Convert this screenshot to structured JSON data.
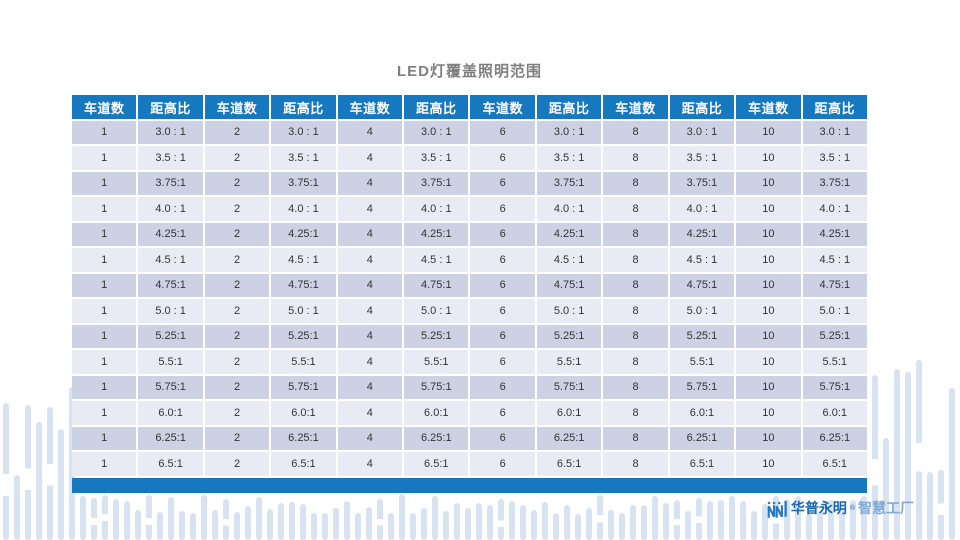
{
  "title": "LED灯覆盖照明范围",
  "table": {
    "column_pair_labels": {
      "lanes": "车道数",
      "ratio": "距高比"
    },
    "pairs": 6,
    "lanes": [
      1,
      2,
      4,
      6,
      8,
      10
    ],
    "ratios": [
      "3.0 : 1",
      "3.5 : 1",
      "3.75:1",
      "4.0 : 1",
      "4.25:1",
      "4.5 : 1",
      "4.75:1",
      "5.0 : 1",
      "5.25:1",
      "5.5:1",
      "5.75:1",
      "6.0:1",
      "6.25:1",
      "6.5:1"
    ]
  },
  "footer": {
    "brand": "华普永明",
    "trademark": "®",
    "brand_suffix": "智慧工厂"
  },
  "colors": {
    "header_blue": "#1678bf",
    "row_odd": "#ccd2e4",
    "row_even": "#e9ebf4",
    "footer_bar_blue": "#1678bf",
    "pattern_light_blue": "#d7e3f0",
    "title_gray": "#7f7f7f",
    "brand_blue": "#1866b2",
    "brand_light_blue": "#7fa8d6"
  }
}
